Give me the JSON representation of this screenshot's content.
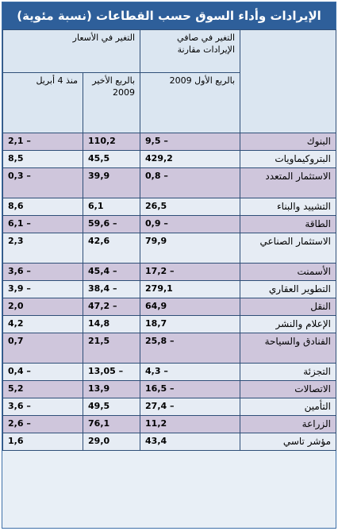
{
  "title": "الإيرادات وأداء السوق حسب القطاعات (نسبة مئوية)",
  "headers": {
    "revenue_change": "التغير في صافي الإيرادات مقارنة",
    "price_change": "التغير في الأسعار",
    "q1_2009": "بالربع الأول 2009",
    "last_quarter": "بالربع الأخير 2009",
    "since_april": "منذ 4 أبريل"
  },
  "rows": [
    {
      "sector": "البنوك",
      "revenue": "9,5 –",
      "last_q": "110,2",
      "since": "2,1 –"
    },
    {
      "sector": "البتروكيماويات",
      "revenue": "429,2",
      "last_q": "45,5",
      "since": "8,5"
    },
    {
      "sector": "الاستثمار المتعدد",
      "revenue": "0,8 –",
      "last_q": "39,9",
      "since": "0,3 –"
    },
    {
      "sector": "التشييد والبناء",
      "revenue": "26,5",
      "last_q": "6,1",
      "since": "8,6"
    },
    {
      "sector": "الطاقة",
      "revenue": "0,9 –",
      "last_q": "59,6 –",
      "since": "6,1 –"
    },
    {
      "sector": "الاستثمار الصناعي",
      "revenue": "79,9",
      "last_q": "42,6",
      "since": "2,3"
    },
    {
      "sector": "الأسمنت",
      "revenue": "17,2 –",
      "last_q": "45,4 –",
      "since": "3,6 –"
    },
    {
      "sector": "التطوير العقاري",
      "revenue": "279,1",
      "last_q": "38,4 –",
      "since": "3,9 –"
    },
    {
      "sector": "النقل",
      "revenue": "64,9",
      "last_q": "47,2 –",
      "since": "2,0"
    },
    {
      "sector": "الإعلام والنشر",
      "revenue": "18,7",
      "last_q": "14,8",
      "since": "4,2"
    },
    {
      "sector": "الفنادق والسياحة",
      "revenue": "25,8 –",
      "last_q": "21,5",
      "since": "0,7"
    },
    {
      "sector": "التجزئة",
      "revenue": "4,3 –",
      "last_q": "13,05 –",
      "since": "0,4 –"
    },
    {
      "sector": "الاتصالات",
      "revenue": "16,5 –",
      "last_q": "13,9",
      "since": "5,2"
    },
    {
      "sector": "التأمين",
      "revenue": "27,4 –",
      "last_q": "49,5",
      "since": "3,6 –"
    },
    {
      "sector": "الزراعة",
      "revenue": "11,2",
      "last_q": "76,1",
      "since": "2,6 –"
    },
    {
      "sector": "مؤشر تاسي",
      "revenue": "43,4",
      "last_q": "29,0",
      "since": "1,6"
    }
  ]
}
